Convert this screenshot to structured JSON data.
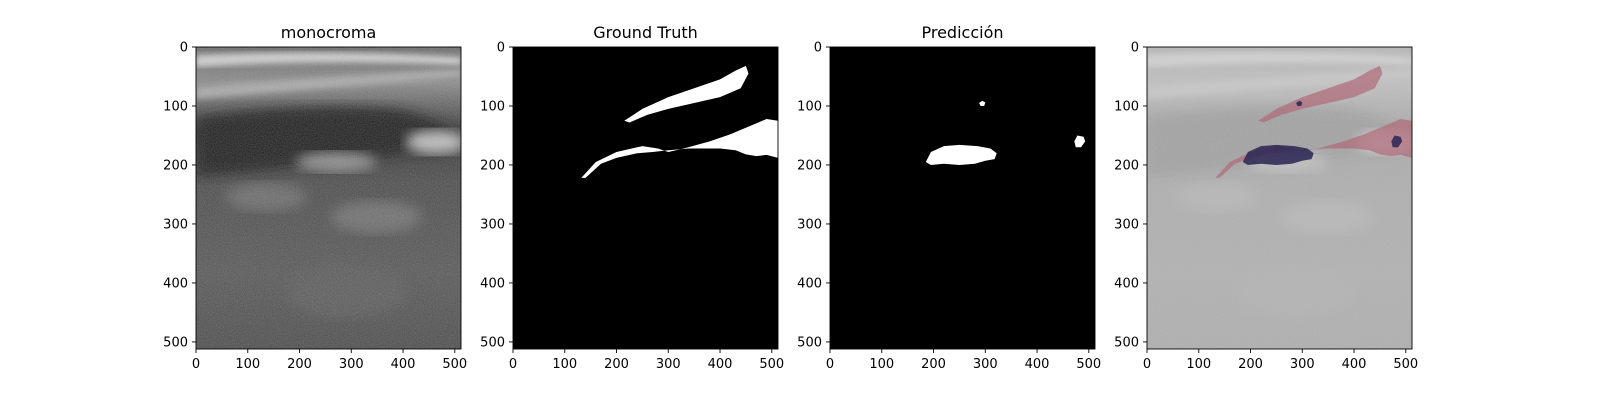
{
  "chart_data": [
    {
      "type": "image",
      "title": "monocroma",
      "xlim": [
        0,
        512
      ],
      "ylim": [
        512,
        0
      ],
      "x_ticks": [
        0,
        100,
        200,
        300,
        400,
        500
      ],
      "y_ticks": [
        0,
        100,
        200,
        300,
        400,
        500
      ],
      "content": "grayscale-ultrasound"
    },
    {
      "type": "image",
      "title": "Ground Truth",
      "xlim": [
        0,
        512
      ],
      "ylim": [
        512,
        0
      ],
      "x_ticks": [
        0,
        100,
        200,
        300,
        400,
        500
      ],
      "y_ticks": [
        0,
        100,
        200,
        300,
        400,
        500
      ],
      "content": "binary-mask",
      "regions": [
        {
          "points": [
            [
              215,
              125
            ],
            [
              250,
              105
            ],
            [
              300,
              85
            ],
            [
              350,
              70
            ],
            [
              400,
              55
            ],
            [
              430,
              40
            ],
            [
              450,
              32
            ],
            [
              455,
              45
            ],
            [
              440,
              70
            ],
            [
              400,
              85
            ],
            [
              350,
              95
            ],
            [
              300,
              105
            ],
            [
              260,
              115
            ],
            [
              225,
              128
            ]
          ]
        },
        {
          "points": [
            [
              132,
              222
            ],
            [
              160,
              195
            ],
            [
              200,
              178
            ],
            [
              250,
              168
            ],
            [
              280,
              172
            ],
            [
              300,
              178
            ],
            [
              330,
              172
            ],
            [
              380,
              160
            ],
            [
              420,
              148
            ],
            [
              455,
              135
            ],
            [
              490,
              122
            ],
            [
              512,
              125
            ],
            [
              512,
              188
            ],
            [
              490,
              183
            ],
            [
              470,
              185
            ],
            [
              450,
              182
            ],
            [
              430,
              175
            ],
            [
              400,
              172
            ],
            [
              370,
              172
            ],
            [
              340,
              172
            ],
            [
              300,
              175
            ],
            [
              270,
              178
            ],
            [
              240,
              180
            ],
            [
              200,
              188
            ],
            [
              170,
              198
            ],
            [
              140,
              222
            ]
          ]
        }
      ]
    },
    {
      "type": "image",
      "title": "Predicción",
      "xlim": [
        0,
        512
      ],
      "ylim": [
        512,
        0
      ],
      "x_ticks": [
        0,
        100,
        200,
        300,
        400,
        500
      ],
      "y_ticks": [
        0,
        100,
        200,
        300,
        400,
        500
      ],
      "content": "binary-mask",
      "regions": [
        {
          "points": [
            [
              185,
              195
            ],
            [
              195,
              178
            ],
            [
              220,
              168
            ],
            [
              250,
              166
            ],
            [
              285,
              168
            ],
            [
              310,
              172
            ],
            [
              322,
              180
            ],
            [
              318,
              190
            ],
            [
              300,
              193
            ],
            [
              280,
              198
            ],
            [
              250,
              200
            ],
            [
              220,
              198
            ],
            [
              195,
              200
            ]
          ]
        },
        {
          "points": [
            [
              288,
              95
            ],
            [
              294,
              91
            ],
            [
              300,
              94
            ],
            [
              298,
              100
            ],
            [
              291,
              100
            ]
          ]
        },
        {
          "points": [
            [
              472,
              160
            ],
            [
              478,
              150
            ],
            [
              490,
              152
            ],
            [
              493,
              160
            ],
            [
              485,
              170
            ],
            [
              475,
              170
            ]
          ]
        }
      ]
    },
    {
      "type": "image",
      "title": "",
      "xlim": [
        0,
        512
      ],
      "ylim": [
        512,
        0
      ],
      "x_ticks": [
        0,
        100,
        200,
        300,
        400,
        500
      ],
      "y_ticks": [
        0,
        100,
        200,
        300,
        400,
        500
      ],
      "content": "overlay",
      "overlay_colors": {
        "ground_truth": "#b06a78",
        "prediction": "#2a2452"
      }
    }
  ]
}
